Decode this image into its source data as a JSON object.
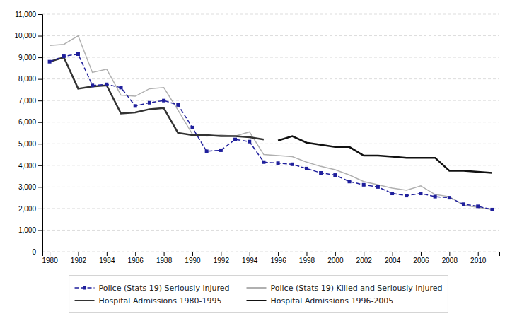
{
  "chart_data": {
    "type": "line",
    "x": [
      1980,
      1981,
      1982,
      1983,
      1984,
      1985,
      1986,
      1987,
      1988,
      1989,
      1990,
      1991,
      1992,
      1993,
      1994,
      1995,
      1996,
      1997,
      1998,
      1999,
      2000,
      2001,
      2002,
      2003,
      2004,
      2005,
      2006,
      2007,
      2008,
      2009,
      2010,
      2011
    ],
    "series": [
      {
        "name": "Police (Stats 19) Seriously injured",
        "color": "#1f1f9c",
        "line_style": "dashed",
        "marker": "square",
        "values": [
          8800,
          9050,
          9150,
          7700,
          7750,
          7600,
          6750,
          6900,
          7000,
          6800,
          5750,
          4650,
          4700,
          5200,
          5100,
          4150,
          4100,
          4050,
          3850,
          3650,
          3550,
          3250,
          3100,
          3000,
          2700,
          2600,
          2700,
          2550,
          2500,
          2200,
          2100,
          1950
        ]
      },
      {
        "name": "Police (Stats 19) Killed and Seriously Injured",
        "color": "#b0b0b0",
        "line_style": "solid",
        "values": [
          9550,
          9600,
          10000,
          8300,
          8450,
          7250,
          7200,
          7550,
          7600,
          6550,
          5450,
          5350,
          5400,
          5350,
          5550,
          4500,
          4450,
          4400,
          4150,
          3950,
          3800,
          3550,
          3250,
          3100,
          2950,
          2850,
          3050,
          2650,
          2550,
          2150,
          2050,
          1950
        ]
      },
      {
        "name": "Hospital Admissions 1980-1995",
        "color": "#333333",
        "line_style": "solid",
        "values": [
          8800,
          9000,
          7550,
          7650,
          7700,
          6400,
          6450,
          6600,
          6650,
          5500,
          5400,
          5400,
          5350,
          5350,
          5300,
          5200,
          null,
          null,
          null,
          null,
          null,
          null,
          null,
          null,
          null,
          null,
          null,
          null,
          null,
          null,
          null,
          null
        ]
      },
      {
        "name": "Hospital Admissions 1996-2005",
        "color": "#111111",
        "line_style": "solid",
        "values": [
          null,
          null,
          null,
          null,
          null,
          null,
          null,
          null,
          null,
          null,
          null,
          null,
          null,
          null,
          null,
          null,
          5150,
          5350,
          5050,
          4950,
          4850,
          4850,
          4450,
          4450,
          4400,
          4350,
          4350,
          4350,
          3750,
          3750,
          3700,
          3650
        ]
      }
    ],
    "xlim": [
      1979.5,
      2011.5
    ],
    "xticks": [
      1980,
      1982,
      1984,
      1986,
      1988,
      1990,
      1992,
      1994,
      1996,
      1998,
      2000,
      2002,
      2004,
      2006,
      2008,
      2010
    ],
    "ylim": [
      0,
      11000
    ],
    "yticks": [
      0,
      {
        "value": 1000,
        "label": "1,000"
      },
      {
        "value": 2000,
        "label": "2,000"
      },
      {
        "value": 3000,
        "label": "3,000"
      },
      {
        "value": 4000,
        "label": "4,000"
      },
      {
        "value": 5000,
        "label": "5,000"
      },
      {
        "value": 6000,
        "label": "6,000"
      },
      {
        "value": 7000,
        "label": "7,000"
      },
      {
        "value": 8000,
        "label": "8,000"
      },
      {
        "value": 9000,
        "label": "9,000"
      },
      {
        "value": 10000,
        "label": "10,000"
      },
      {
        "value": 11000,
        "label": "11,000"
      }
    ],
    "grid": true,
    "legend": "bottom"
  }
}
